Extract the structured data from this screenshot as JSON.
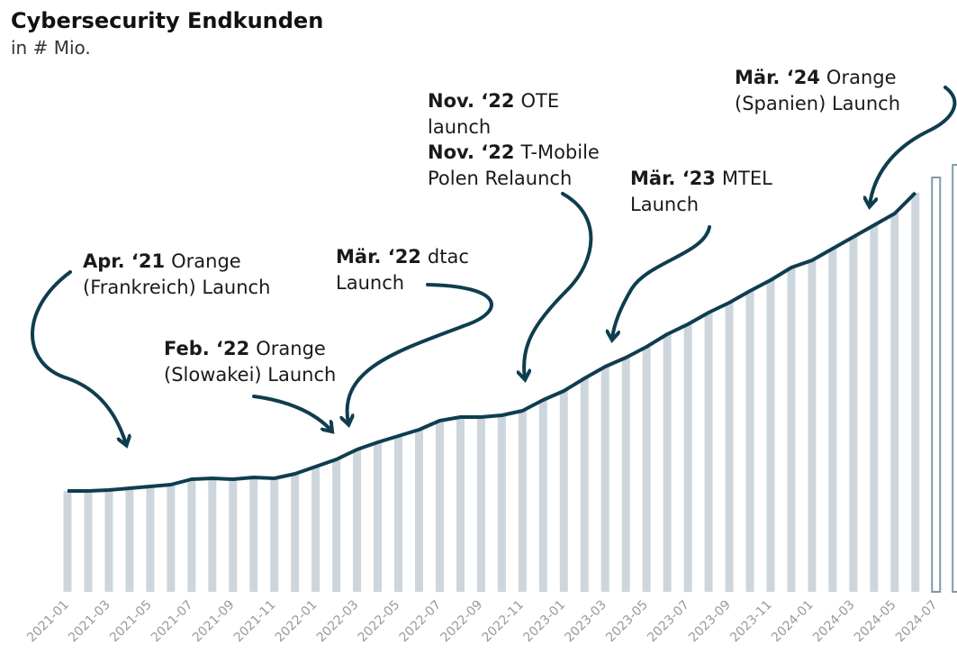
{
  "chart_data": {
    "type": "bar",
    "title": "Cybersecurity Endkunden",
    "subtitle": "in # Mio.",
    "categories": [
      "2021-01",
      null,
      "2021-03",
      null,
      "2021-05",
      null,
      "2021-07",
      null,
      "2021-09",
      null,
      "2021-11",
      null,
      "2022-01",
      null,
      "2022-03",
      null,
      "2022-05",
      null,
      "2022-07",
      null,
      "2022-09",
      null,
      "2022-11",
      null,
      "2023-01",
      null,
      "2023-03",
      null,
      "2023-05",
      null,
      "2023-07",
      null,
      "2023-09",
      null,
      "2023-11",
      null,
      "2024-01",
      null,
      "2024-03",
      null,
      "2024-05",
      null,
      "2024-07",
      null
    ],
    "series": [
      {
        "style": "filled",
        "color": "#cdd6dc",
        "line_color": "#0f3d50",
        "values": [
          11.2,
          11.2,
          11.3,
          11.5,
          11.7,
          11.9,
          12.5,
          12.6,
          12.5,
          12.7,
          12.6,
          13.1,
          13.9,
          14.7,
          15.8,
          16.6,
          17.3,
          18.0,
          19.0,
          19.4,
          19.4,
          19.6,
          20.1,
          21.3,
          22.3,
          23.7,
          25.0,
          26.0,
          27.2,
          28.6,
          29.7,
          31.0,
          32.1,
          33.4,
          34.6,
          36.0,
          36.8,
          38.1,
          39.4,
          40.7,
          42.0,
          44.3,
          null,
          null
        ]
      },
      {
        "style": "outline",
        "color": "#7f9aa8",
        "values": [
          null,
          null,
          null,
          null,
          null,
          null,
          null,
          null,
          null,
          null,
          null,
          null,
          null,
          null,
          null,
          null,
          null,
          null,
          null,
          null,
          null,
          null,
          null,
          null,
          null,
          null,
          null,
          null,
          null,
          null,
          null,
          null,
          null,
          null,
          null,
          null,
          null,
          null,
          null,
          null,
          null,
          null,
          46.0,
          47.4
        ]
      }
    ],
    "annotations": [
      {
        "date": "Apr. ‘21",
        "lines": [
          "Orange",
          "(Frankreich) Launch"
        ]
      },
      {
        "date": "Feb. ‘22",
        "lines": [
          "Orange",
          "(Slowakei) Launch"
        ]
      },
      {
        "date": "Mär. ‘22",
        "lines": [
          "dtac",
          "Launch"
        ]
      },
      {
        "date": "Nov. ‘22",
        "lines": [
          "OTE",
          "launch"
        ]
      },
      {
        "date": "Nov. ‘22",
        "lines": [
          "T-Mobile",
          "Polen Relaunch"
        ]
      },
      {
        "date": "Mär. ‘23",
        "lines": [
          "MTEL",
          "Launch"
        ]
      },
      {
        "date": "Mär. ‘24",
        "lines": [
          "Orange",
          "(Spanien) Launch"
        ]
      }
    ]
  }
}
